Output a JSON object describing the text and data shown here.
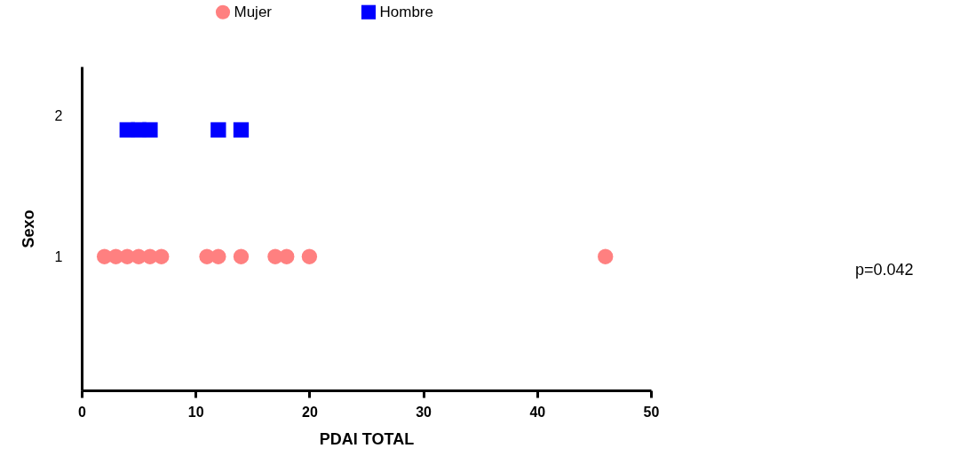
{
  "chart_data": {
    "type": "scatter",
    "xlabel": "PDAI TOTAL",
    "ylabel": "Sexo",
    "xlim": [
      0,
      50
    ],
    "xticks": [
      0,
      10,
      20,
      30,
      40,
      50
    ],
    "ylim": [
      0.05,
      2.35
    ],
    "yticks": [
      1,
      2
    ],
    "grid": false,
    "legend": "top",
    "annotations": [
      "p=0.042"
    ],
    "series": [
      {
        "name": "Mujer",
        "color": "#ff8080",
        "marker": "circle",
        "x": [
          2,
          3,
          4,
          5,
          6,
          7,
          11,
          12,
          14,
          17,
          18,
          20,
          46
        ],
        "values": [
          1,
          1,
          1,
          1,
          1,
          1,
          1,
          1,
          1,
          1,
          1,
          1,
          1
        ]
      },
      {
        "name": "Hombre",
        "color": "#0000ff",
        "marker": "square",
        "x": [
          4,
          5,
          6,
          12,
          14
        ],
        "values": [
          1.9,
          1.9,
          1.9,
          1.9,
          1.9
        ]
      }
    ]
  }
}
